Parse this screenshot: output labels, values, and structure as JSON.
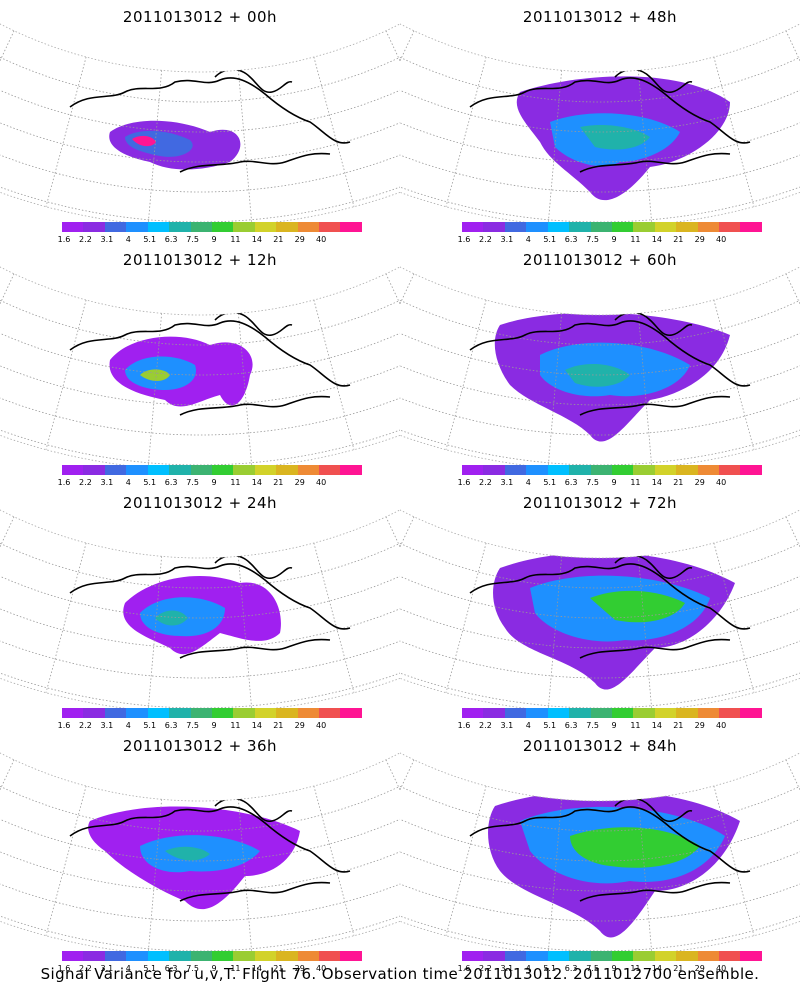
{
  "panels": [
    {
      "title": "2011013012 + 00h",
      "lead_hours": 0
    },
    {
      "title": "2011013012 + 48h",
      "lead_hours": 48
    },
    {
      "title": "2011013012 + 12h",
      "lead_hours": 12
    },
    {
      "title": "2011013012 + 60h",
      "lead_hours": 60
    },
    {
      "title": "2011013012 + 24h",
      "lead_hours": 24
    },
    {
      "title": "2011013012 + 72h",
      "lead_hours": 72
    },
    {
      "title": "2011013012 + 36h",
      "lead_hours": 36
    },
    {
      "title": "2011013012 + 84h",
      "lead_hours": 84
    }
  ],
  "colorbar": {
    "labels": [
      "1.6",
      "2.2",
      "3.1",
      "4",
      "5.1",
      "6.3",
      "7.5",
      "9",
      "11",
      "14",
      "21",
      "29",
      "40"
    ],
    "colors": [
      "#a020f0",
      "#8a2be2",
      "#4169e1",
      "#1e90ff",
      "#00bfff",
      "#20b2aa",
      "#3cb371",
      "#32cd32",
      "#9acd32",
      "#d2d22a",
      "#dab520",
      "#ee8a35",
      "#f05050",
      "#ff1493"
    ]
  },
  "caption": "Signal Variance for u,v,T. Flight 76. Observation time 2011013012. 2011012700 ensemble."
}
